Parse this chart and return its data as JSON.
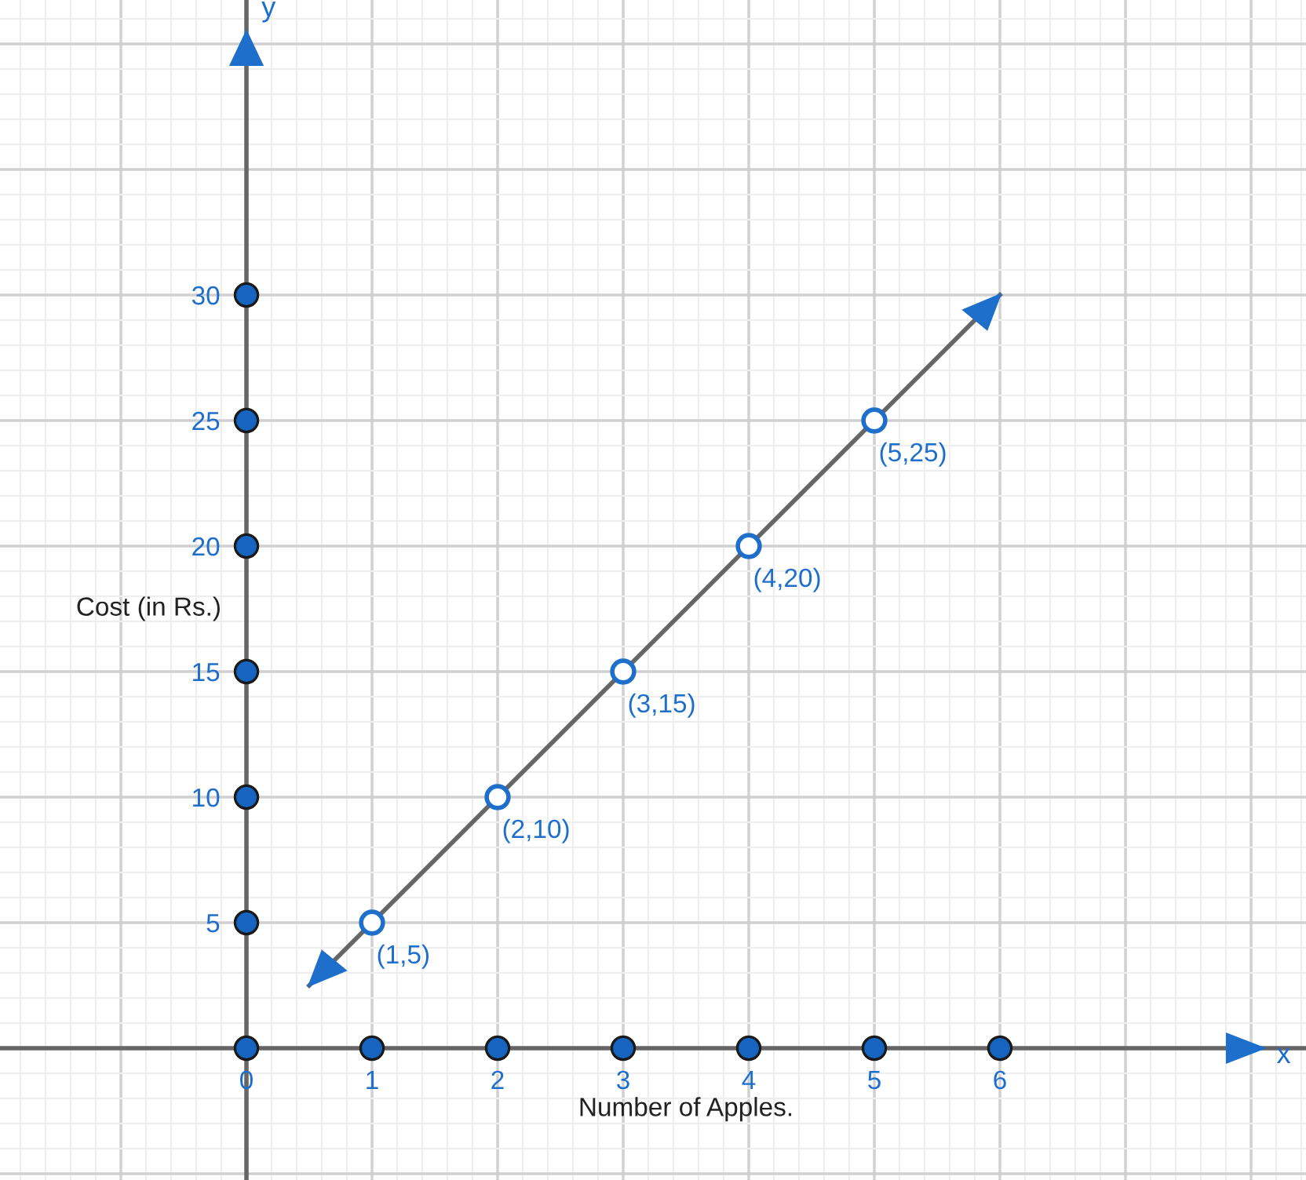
{
  "chart_data": {
    "type": "scatter",
    "xlabel": "Number of Apples.",
    "ylabel": "Cost (in Rs.)",
    "annotations": [
      "x",
      "y",
      {
        "text": "(1,5)",
        "x": 1,
        "y": 5
      },
      {
        "text": "(2,10)",
        "x": 2,
        "y": 10
      },
      {
        "text": "(3,15)",
        "x": 3,
        "y": 15
      },
      {
        "text": "(4,20)",
        "x": 4,
        "y": 20
      },
      {
        "text": "(5,25)",
        "x": 5,
        "y": 25
      }
    ],
    "xlim": [
      -1.9625,
      8.4375
    ],
    "ylim": [
      -5.25,
      41.75
    ],
    "xticks": [
      0,
      1,
      2,
      3,
      4,
      5,
      6
    ],
    "yticks": [
      {
        "value": 0,
        "label": null
      },
      5,
      10,
      15,
      20,
      25,
      30
    ],
    "grid": true,
    "series": [
      {
        "type": "line",
        "color": "#666666",
        "x": [
          0.5,
          1,
          2,
          3,
          4,
          5,
          6
        ],
        "values": [
          2.5,
          5,
          10,
          15,
          20,
          25,
          30
        ],
        "marker": "circle"
      },
      {
        "color": "#1565c0",
        "x": [
          0,
          1,
          2,
          3,
          4,
          5,
          6
        ],
        "values": [
          0,
          0,
          0,
          0,
          0,
          0,
          0
        ],
        "marker": "circle"
      },
      {
        "color": "#1565c0",
        "x": [
          0,
          0,
          0,
          0,
          0,
          0
        ],
        "values": [
          5,
          10,
          15,
          20,
          25,
          30
        ],
        "marker": "circle"
      }
    ]
  }
}
